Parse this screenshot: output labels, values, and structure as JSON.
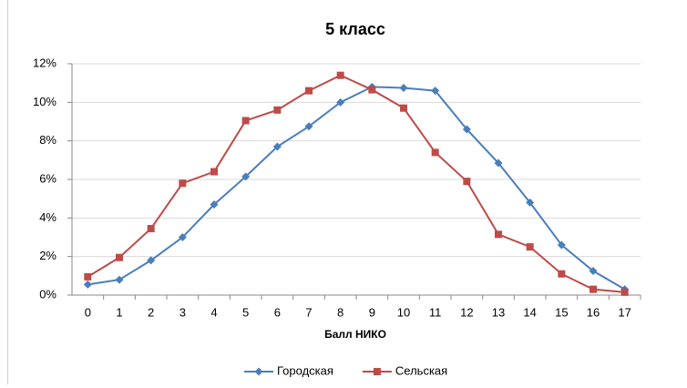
{
  "chart_data": {
    "type": "line",
    "title": "5 класс",
    "x_label": "Балл НИКО",
    "categories": [
      "0",
      "1",
      "2",
      "3",
      "4",
      "5",
      "6",
      "7",
      "8",
      "9",
      "10",
      "11",
      "12",
      "13",
      "14",
      "15",
      "16",
      "17"
    ],
    "series": [
      {
        "name": "Городская",
        "color": "#4a7ebb",
        "marker": "diamond",
        "values": [
          0.55,
          0.8,
          1.8,
          3.0,
          4.7,
          6.15,
          7.7,
          8.75,
          10.0,
          10.8,
          10.75,
          10.6,
          8.6,
          6.85,
          4.8,
          2.6,
          1.25,
          0.3
        ]
      },
      {
        "name": "Сельская",
        "color": "#be4b48",
        "marker": "square",
        "values": [
          0.95,
          1.95,
          3.45,
          5.8,
          6.4,
          9.05,
          9.6,
          10.6,
          11.4,
          10.65,
          9.7,
          7.4,
          5.9,
          3.15,
          2.5,
          1.1,
          0.3,
          0.15
        ]
      }
    ],
    "ylim": [
      0,
      12
    ],
    "yticks": [
      {
        "value": 0,
        "label": "0%"
      },
      {
        "value": 2,
        "label": "2%"
      },
      {
        "value": 4,
        "label": "4%"
      },
      {
        "value": 6,
        "label": "6%"
      },
      {
        "value": 8,
        "label": "8%"
      },
      {
        "value": 10,
        "label": "10%"
      },
      {
        "value": 12,
        "label": "12%"
      }
    ],
    "grid": true,
    "legend": "bottom"
  }
}
